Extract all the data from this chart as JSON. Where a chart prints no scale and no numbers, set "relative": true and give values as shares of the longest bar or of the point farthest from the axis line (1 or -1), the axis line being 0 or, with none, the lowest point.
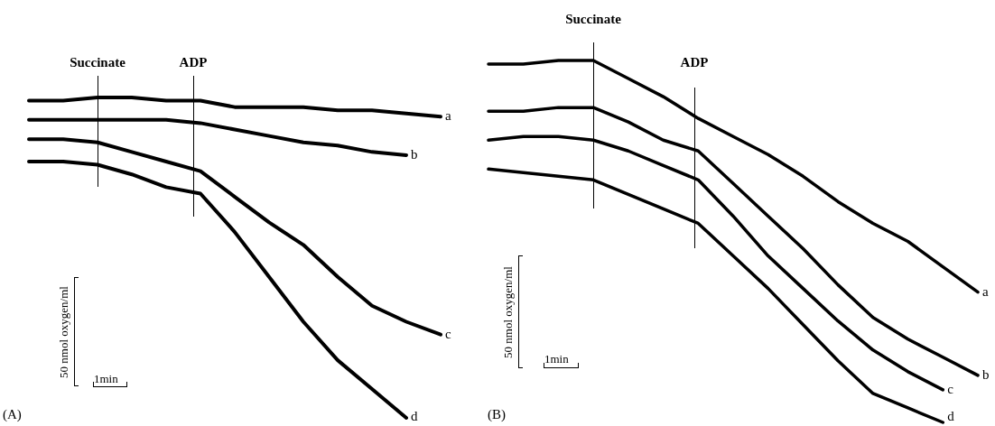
{
  "chart_data": [
    {
      "type": "line",
      "relative": true,
      "tick_labels": false,
      "marker": "none",
      "categories": [
        null,
        null,
        null,
        null,
        null,
        null,
        null,
        null,
        null,
        null,
        null,
        null,
        null
      ],
      "annotations": [
        "(A)",
        "50 nmol oxygen/ml",
        "1min",
        "Succinate",
        "ADP"
      ],
      "series": [
        {
          "name": "a",
          "color": "#000000",
          "values": [
            0.99,
            0.99,
            1.0,
            1.0,
            0.99,
            0.99,
            0.97,
            0.97,
            0.97,
            0.96,
            0.96,
            0.95,
            0.94
          ]
        },
        {
          "name": "b",
          "color": "#000000",
          "values": [
            0.93,
            0.93,
            0.93,
            0.93,
            0.93,
            0.92,
            0.9,
            0.88,
            0.86,
            0.85,
            0.83,
            0.82,
            null
          ]
        },
        {
          "name": "c",
          "color": "#000000",
          "values": [
            0.87,
            0.87,
            0.86,
            0.83,
            0.8,
            0.77,
            0.69,
            0.61,
            0.54,
            0.44,
            0.35,
            0.3,
            0.26
          ]
        },
        {
          "name": "d",
          "color": "#000000",
          "values": [
            0.8,
            0.8,
            0.79,
            0.76,
            0.72,
            0.7,
            0.58,
            0.44,
            0.3,
            0.18,
            0.09,
            0,
            null
          ]
        }
      ]
    },
    {
      "type": "line",
      "relative": true,
      "tick_labels": false,
      "marker": "none",
      "categories": [
        null,
        null,
        null,
        null,
        null,
        null,
        null,
        null,
        null,
        null,
        null,
        null,
        null,
        null,
        null
      ],
      "annotations": [
        "(B)",
        "50 nmol oxygen/ml",
        "1min",
        "Succinate",
        "ADP"
      ],
      "series": [
        {
          "name": "a",
          "color": "#000000",
          "values": [
            0.99,
            0.99,
            1.0,
            1.0,
            0.95,
            0.9,
            0.84,
            0.79,
            0.74,
            0.68,
            0.61,
            0.55,
            0.5,
            0.43,
            0.36
          ]
        },
        {
          "name": "b",
          "color": "#000000",
          "values": [
            0.86,
            0.86,
            0.87,
            0.87,
            0.83,
            0.78,
            0.75,
            0.66,
            0.57,
            0.48,
            0.38,
            0.29,
            0.23,
            0.18,
            0.13
          ]
        },
        {
          "name": "c",
          "color": "#000000",
          "values": [
            0.78,
            0.79,
            0.79,
            0.78,
            0.75,
            0.71,
            0.67,
            0.57,
            0.46,
            0.37,
            0.28,
            0.2,
            0.14,
            0.09,
            null
          ]
        },
        {
          "name": "d",
          "color": "#000000",
          "values": [
            0.7,
            0.69,
            0.68,
            0.67,
            0.63,
            0.59,
            0.55,
            0.46,
            0.37,
            0.27,
            0.17,
            0.08,
            0.04,
            0,
            null
          ]
        }
      ]
    }
  ]
}
